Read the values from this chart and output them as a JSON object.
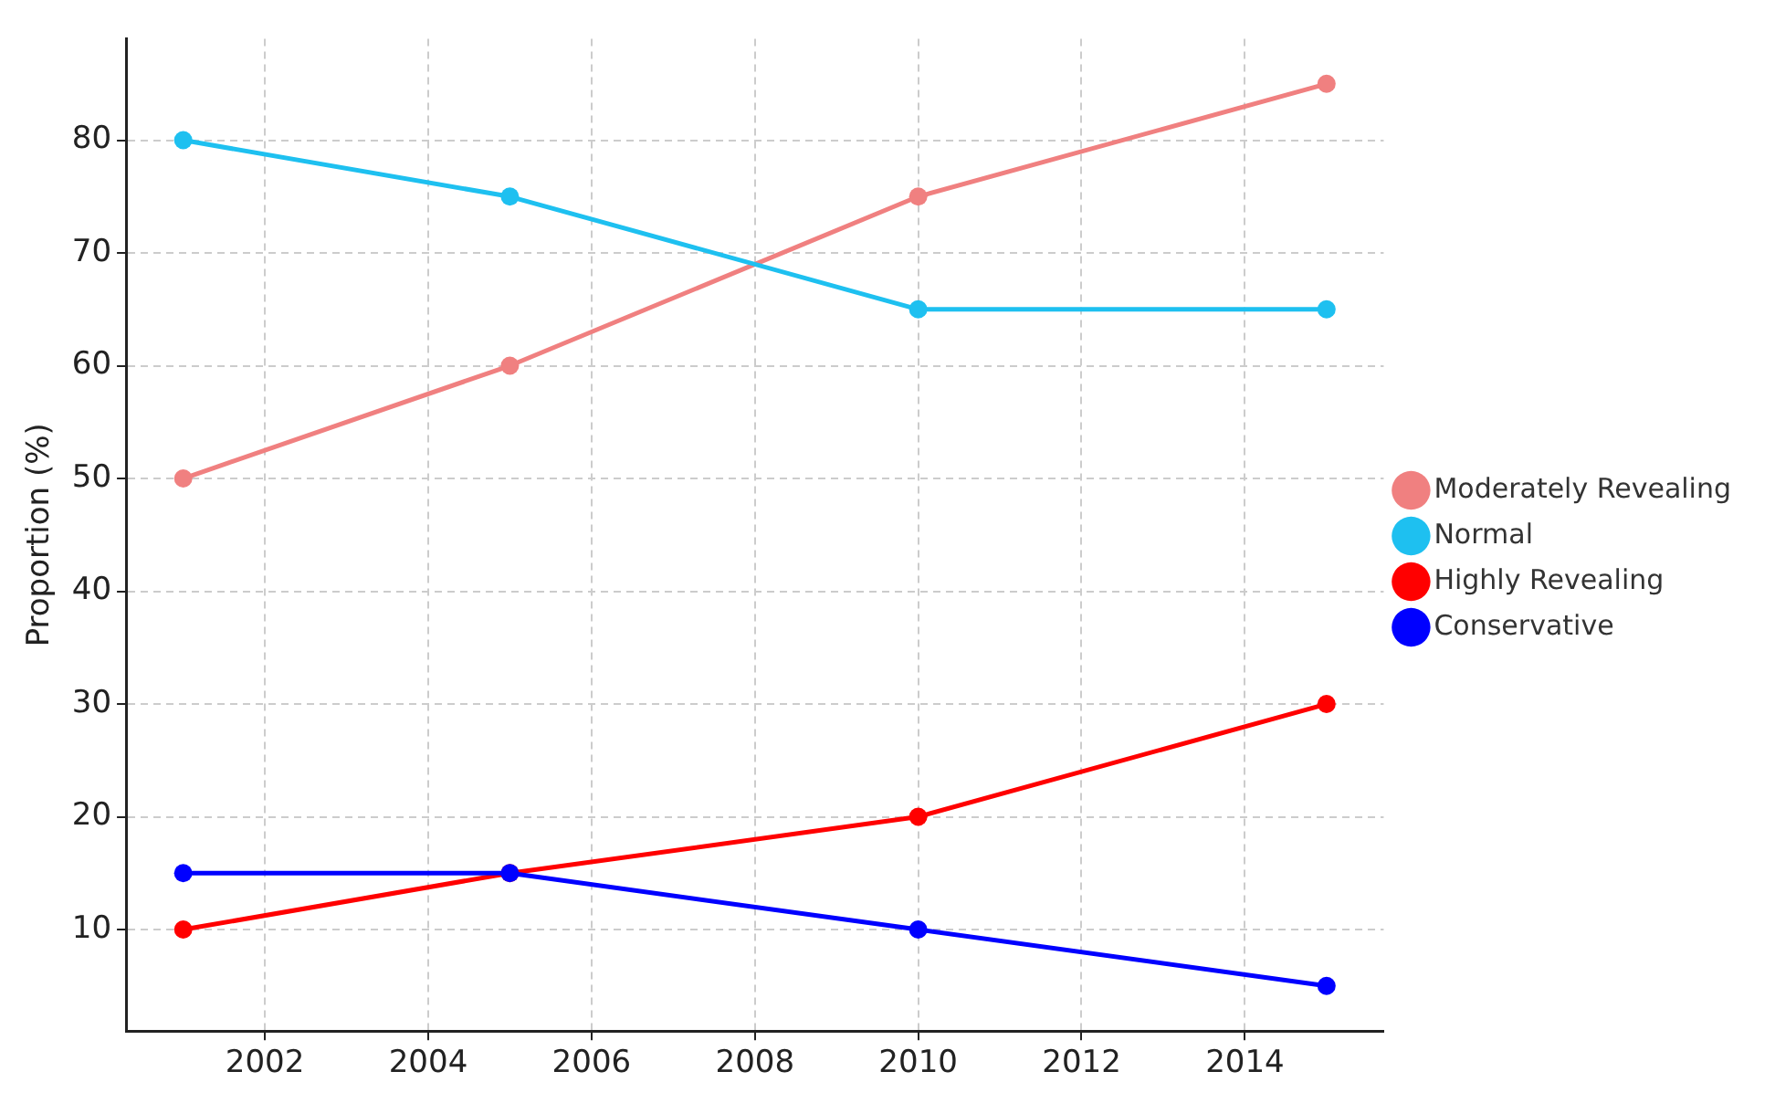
{
  "chart_data": {
    "type": "line",
    "ylabel": "Proportion (%)",
    "x": [
      2001,
      2005,
      2010,
      2015
    ],
    "series": [
      {
        "name": "Moderately Revealing",
        "color": "#f08080",
        "values": [
          50,
          60,
          75,
          85
        ]
      },
      {
        "name": "Normal",
        "color": "#1ec0f0",
        "values": [
          80,
          75,
          65,
          65
        ]
      },
      {
        "name": "Highly Revealing",
        "color": "#ff0000",
        "values": [
          10,
          15,
          20,
          30
        ]
      },
      {
        "name": "Conservative",
        "color": "#0000ff",
        "values": [
          15,
          15,
          10,
          5
        ]
      }
    ],
    "xlim": [
      2000.3,
      2015.7
    ],
    "xticks": [
      2002,
      2004,
      2006,
      2008,
      2010,
      2012,
      2014
    ],
    "ylim": [
      1,
      89
    ],
    "yticks": [
      10,
      20,
      30,
      40,
      50,
      60,
      70,
      80
    ],
    "grid": true,
    "legend": "center right",
    "marker": "circle",
    "line_style": "solid"
  }
}
